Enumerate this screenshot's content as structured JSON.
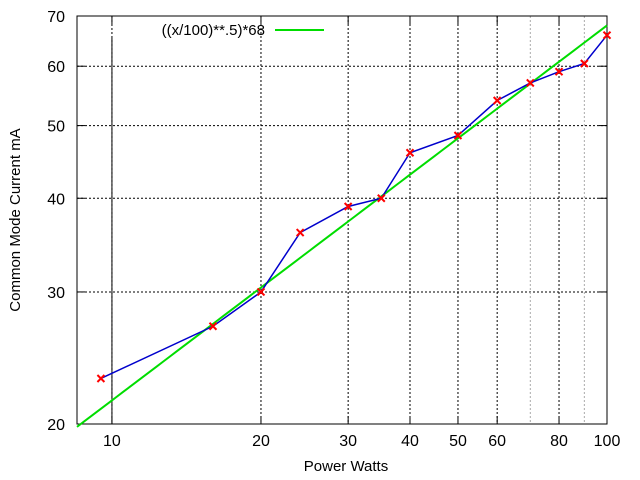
{
  "chart_data": {
    "type": "line",
    "title": "",
    "xlabel": "Power Watts",
    "ylabel": "Common Mode Current mA",
    "xscale": "log",
    "yscale": "log",
    "xlim": [
      8.5,
      100
    ],
    "ylim": [
      20,
      70
    ],
    "xticks": [
      10,
      20,
      30,
      40,
      50,
      60,
      80,
      100
    ],
    "xtick_labels": [
      "10",
      "20",
      "30",
      "40",
      "50",
      "60",
      "80",
      "100"
    ],
    "yticks": [
      20,
      30,
      40,
      50,
      60,
      70
    ],
    "ytick_labels": [
      "20",
      "30",
      "40",
      "50",
      "60",
      "70"
    ],
    "grid": true,
    "legend_position": "top-left",
    "series": [
      {
        "name": "",
        "style": "line+x-markers",
        "line_color": "#0000cc",
        "marker_color": "#ff0000",
        "x": [
          9.5,
          16,
          20,
          24,
          30,
          35,
          40,
          50,
          60,
          70,
          80,
          90,
          100
        ],
        "y": [
          23,
          27,
          30,
          36,
          39,
          40,
          46,
          48.5,
          54,
          57,
          59,
          60.5,
          66
        ]
      },
      {
        "name": "((x/100)**.5)*68",
        "style": "line",
        "line_color": "#00dd00",
        "formula": "((x/100)**.5)*68"
      }
    ],
    "vertical_marks": [
      10,
      70,
      90
    ]
  }
}
